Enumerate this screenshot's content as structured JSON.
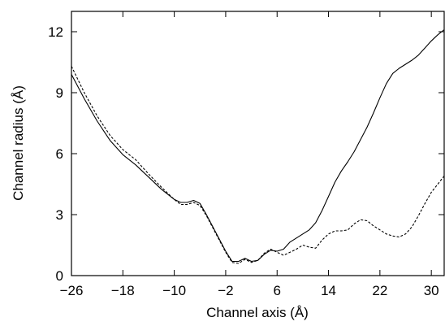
{
  "chart_data": {
    "type": "line",
    "title": "",
    "xlabel": "Channel axis (Å)",
    "ylabel": "Channel radius (Å)",
    "xlim": [
      -26,
      32
    ],
    "ylim": [
      0,
      13
    ],
    "x_ticks": [
      -26,
      -18,
      -10,
      -2,
      6,
      14,
      22,
      30
    ],
    "y_ticks": [
      0,
      3,
      6,
      9,
      12
    ],
    "x_tick_labels": [
      "−26",
      "−18",
      "−10",
      "−2",
      "6",
      "14",
      "22",
      "30"
    ],
    "y_tick_labels": [
      "0",
      "3",
      "6",
      "9",
      "12"
    ],
    "grid": false,
    "legend": "none",
    "series": [
      {
        "style": "solid",
        "color": "#000000",
        "points": [
          [
            -26,
            9.9
          ],
          [
            -24,
            8.7
          ],
          [
            -22,
            7.6
          ],
          [
            -20,
            6.65
          ],
          [
            -18,
            5.95
          ],
          [
            -16,
            5.45
          ],
          [
            -14,
            4.85
          ],
          [
            -12,
            4.25
          ],
          [
            -10,
            3.75
          ],
          [
            -9,
            3.6
          ],
          [
            -8,
            3.6
          ],
          [
            -7,
            3.7
          ],
          [
            -6,
            3.55
          ],
          [
            -5,
            3.0
          ],
          [
            -4,
            2.4
          ],
          [
            -3,
            1.8
          ],
          [
            -2,
            1.2
          ],
          [
            -1,
            0.7
          ],
          [
            0,
            0.7
          ],
          [
            1,
            0.85
          ],
          [
            2,
            0.7
          ],
          [
            3,
            0.75
          ],
          [
            4,
            1.05
          ],
          [
            5,
            1.25
          ],
          [
            6,
            1.2
          ],
          [
            7,
            1.3
          ],
          [
            8,
            1.65
          ],
          [
            9,
            1.85
          ],
          [
            10,
            2.05
          ],
          [
            11,
            2.25
          ],
          [
            12,
            2.6
          ],
          [
            13,
            3.2
          ],
          [
            14,
            3.9
          ],
          [
            15,
            4.6
          ],
          [
            16,
            5.15
          ],
          [
            17,
            5.6
          ],
          [
            18,
            6.1
          ],
          [
            19,
            6.7
          ],
          [
            20,
            7.3
          ],
          [
            21,
            8.0
          ],
          [
            22,
            8.75
          ],
          [
            23,
            9.45
          ],
          [
            24,
            9.95
          ],
          [
            25,
            10.2
          ],
          [
            26,
            10.4
          ],
          [
            27,
            10.6
          ],
          [
            28,
            10.85
          ],
          [
            29,
            11.2
          ],
          [
            30,
            11.55
          ],
          [
            31,
            11.85
          ],
          [
            32,
            12.1
          ]
        ]
      },
      {
        "style": "dashed",
        "color": "#000000",
        "points": [
          [
            -26,
            10.3
          ],
          [
            -24,
            9.0
          ],
          [
            -22,
            7.85
          ],
          [
            -20,
            6.9
          ],
          [
            -18,
            6.2
          ],
          [
            -16,
            5.7
          ],
          [
            -14,
            5.0
          ],
          [
            -12,
            4.35
          ],
          [
            -10,
            3.75
          ],
          [
            -9,
            3.5
          ],
          [
            -8,
            3.5
          ],
          [
            -7,
            3.6
          ],
          [
            -6,
            3.45
          ],
          [
            -5,
            2.95
          ],
          [
            -4,
            2.35
          ],
          [
            -3,
            1.75
          ],
          [
            -2,
            1.15
          ],
          [
            -1,
            0.65
          ],
          [
            0,
            0.6
          ],
          [
            1,
            0.8
          ],
          [
            2,
            0.65
          ],
          [
            3,
            0.75
          ],
          [
            4,
            1.1
          ],
          [
            5,
            1.3
          ],
          [
            6,
            1.15
          ],
          [
            7,
            1.0
          ],
          [
            8,
            1.15
          ],
          [
            9,
            1.3
          ],
          [
            10,
            1.5
          ],
          [
            11,
            1.4
          ],
          [
            12,
            1.35
          ],
          [
            13,
            1.75
          ],
          [
            14,
            2.05
          ],
          [
            15,
            2.2
          ],
          [
            16,
            2.2
          ],
          [
            17,
            2.25
          ],
          [
            18,
            2.55
          ],
          [
            19,
            2.75
          ],
          [
            20,
            2.7
          ],
          [
            21,
            2.45
          ],
          [
            22,
            2.25
          ],
          [
            23,
            2.05
          ],
          [
            24,
            1.95
          ],
          [
            25,
            1.9
          ],
          [
            26,
            2.05
          ],
          [
            27,
            2.4
          ],
          [
            28,
            2.95
          ],
          [
            29,
            3.55
          ],
          [
            30,
            4.1
          ],
          [
            31,
            4.5
          ],
          [
            32,
            4.9
          ]
        ]
      }
    ]
  }
}
